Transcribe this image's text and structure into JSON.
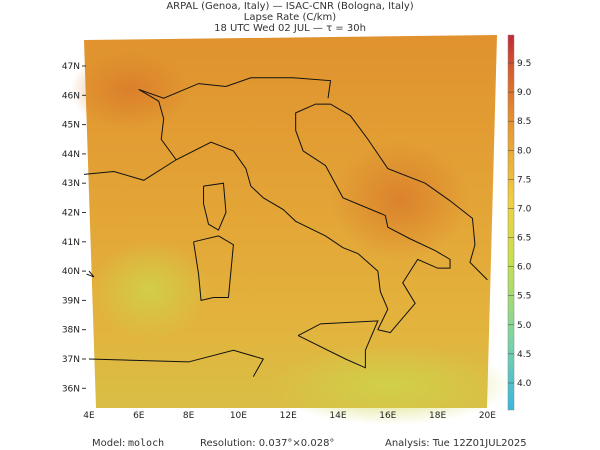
{
  "header": {
    "line1": "ARPAL (Genoa, Italy)  —  ISAC-CNR (Bologna, Italy)",
    "line2": "Lapse Rate (C/km)",
    "line3": "18 UTC Wed 02 JUL  —  τ = 30h"
  },
  "latitude_labels": [
    "36N",
    "37N",
    "38N",
    "39N",
    "40N",
    "41N",
    "42N",
    "43N",
    "44N",
    "45N",
    "46N",
    "47N"
  ],
  "longitude_labels": [
    "4E",
    "6E",
    "8E",
    "10E",
    "12E",
    "14E",
    "16E",
    "18E",
    "20E"
  ],
  "colorbar_labels": [
    "4.0",
    "4.5",
    "5.0",
    "5.5",
    "6.0",
    "6.5",
    "7.0",
    "7.5",
    "8.0",
    "8.5",
    "9.0",
    "9.5"
  ],
  "footer": {
    "model_label": "Model:",
    "model": "moloch",
    "resolution": "Resolution: 0.037°×0.028°",
    "analysis": "Analysis: Tue 12Z01JUL2025"
  }
}
